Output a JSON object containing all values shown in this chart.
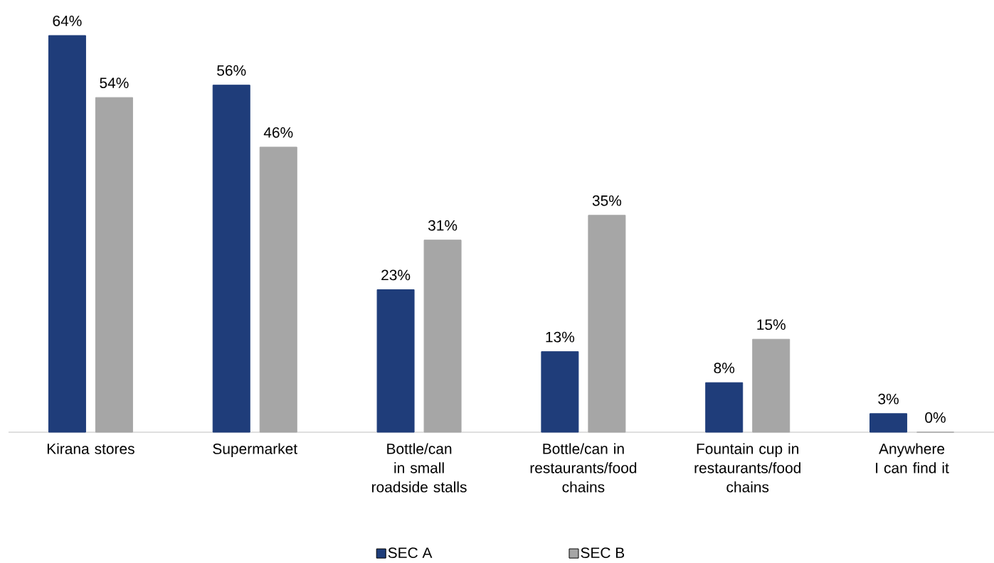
{
  "chart_data": {
    "type": "bar",
    "categories": [
      "Kirana stores",
      "Supermarket",
      "Bottle/can in small roadside stalls",
      "Bottle/can in restaurants/food chains",
      "Fountain cup in restaurants/food chains",
      "Anywhere I can find it"
    ],
    "series": [
      {
        "name": "SEC A",
        "color": "#1f3d7a",
        "values": [
          64,
          56,
          23,
          13,
          8,
          3
        ],
        "value_labels": [
          "64%",
          "56%",
          "23%",
          "13%",
          "8%",
          "3%"
        ]
      },
      {
        "name": "SEC B",
        "color": "#a6a6a6",
        "values": [
          54,
          46,
          31,
          35,
          15,
          0
        ],
        "value_labels": [
          "54%",
          "46%",
          "31%",
          "35%",
          "15%",
          "0%"
        ]
      }
    ],
    "legend": "bottom"
  }
}
